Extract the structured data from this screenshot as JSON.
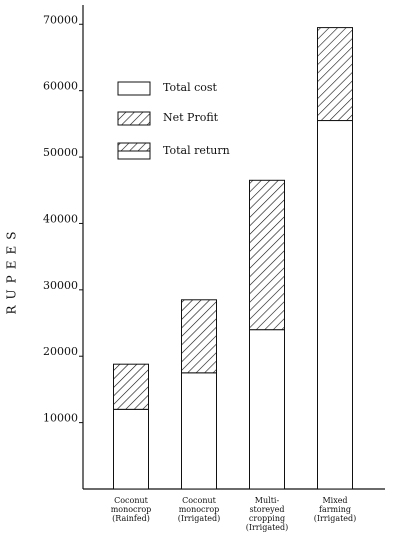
{
  "chart_data": {
    "type": "stacked_bar",
    "y_label": "RUPEES",
    "categories": [
      "Coconut\nmonocrop\n(Rainfed)",
      "Coconut\nmonocrop\n(Irrigated)",
      "Multi-\nstoreyed\ncropping\n(Irrigated)",
      "Mixed\nfarming\n(Irrigated)"
    ],
    "series": [
      {
        "name": "Total cost",
        "color": "#ffffff",
        "hatch": false,
        "values": [
          12000,
          17500,
          24000,
          55500
        ]
      },
      {
        "name": "Net Profit",
        "color": "#ffffff",
        "hatch": true,
        "values": [
          6800,
          11000,
          22500,
          14000
        ]
      }
    ],
    "total_return_label": "Total return",
    "ylim": [
      0,
      72000
    ],
    "yticks": [
      10000,
      20000,
      30000,
      40000,
      50000,
      60000,
      70000
    ],
    "grid": false
  }
}
